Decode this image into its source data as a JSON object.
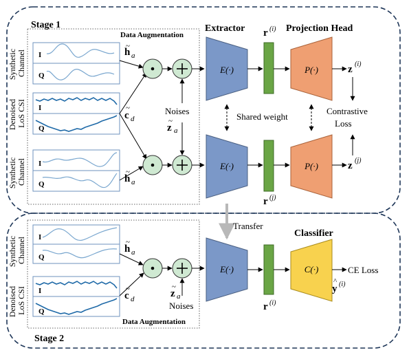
{
  "stage1": {
    "label": "Stage 1",
    "data_augmentation": "Data Augmentation",
    "extractor_title": "Extractor",
    "projection_title": "Projection Head",
    "extractor_fn": "E(·)",
    "projection_fn": "P(·)",
    "r_i": "r",
    "r_i_sup": "(i)",
    "r_j": "r",
    "r_j_sup": "(j)",
    "z_i": "z",
    "z_i_sup": "(i)",
    "z_j": "z",
    "z_j_sup": "(j)",
    "h_a": "h",
    "c_d": "c",
    "z_a": "z",
    "sub_a": "a",
    "sub_d": "d",
    "noises": "Noises",
    "shared_weight": "Shared weight",
    "contrastive_loss_1": "Contrastive",
    "contrastive_loss_2": "Loss",
    "ch_top_1": "Synthetic",
    "ch_top_2": "Channel",
    "ch_mid_1": "Denoised",
    "ch_mid_2": "LoS CSI",
    "ch_bot_1": "Synthetic",
    "ch_bot_2": "Channel",
    "I": "I",
    "Q": "Q"
  },
  "transfer": "Transfer",
  "stage2": {
    "label": "Stage 2",
    "data_augmentation": "Data Augmentation",
    "classifier_title": "Classifier",
    "extractor_fn": "E(·)",
    "classifier_fn": "C(·)",
    "r_i": "r",
    "r_i_sup": "(i)",
    "y_hat": "y",
    "y_hat_sup": "(i)",
    "ce_loss": "CE Loss",
    "h_a": "h",
    "c_d": "c",
    "z_a": "z",
    "sub_a": "a",
    "sub_d": "d",
    "noises": "Noises",
    "ch_top_1": "Synthetic",
    "ch_top_2": "Channel",
    "ch_bot_1": "Denoised",
    "ch_bot_2": "LoS CSI",
    "I": "I",
    "Q": "Q"
  },
  "colors": {
    "extractor": "#7b98c8",
    "projection": "#ef9f72",
    "classifier": "#f8d24e",
    "feature_bar": "#6aa545",
    "op_circle": "#cfe9d2",
    "wave_light": "#7aa7cf",
    "wave_dark": "#1f6aa8",
    "stage_border": "#1d3557"
  }
}
